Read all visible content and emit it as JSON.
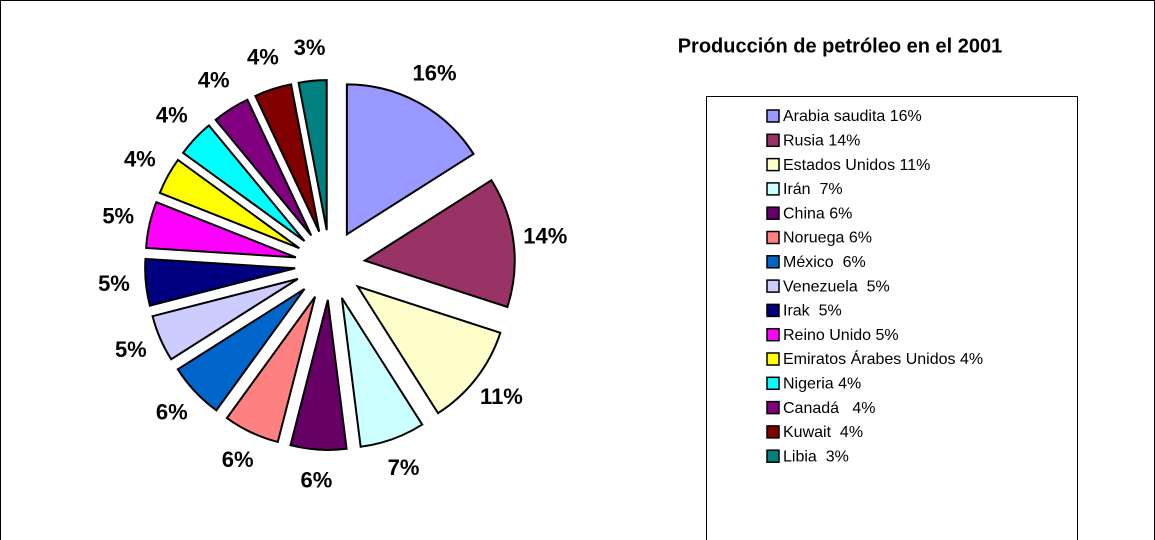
{
  "chart_data": {
    "type": "pie",
    "title": "Producción de petróleo en el 2001",
    "categories": [
      "Arabia saudita 16%",
      "Rusia 14%",
      "Estados Unidos 11%",
      "Irán  7%",
      "China 6%",
      "Noruega 6%",
      "México  6%",
      "Venezuela  5%",
      "Irak  5%",
      "Reino Unido 5%",
      "Emiratos Árabes Unidos 4%",
      "Nigeria 4%",
      "Canadá   4%",
      "Kuwait  4%",
      "Libia  3%"
    ],
    "values": [
      16,
      14,
      11,
      7,
      6,
      6,
      6,
      5,
      5,
      5,
      4,
      4,
      4,
      4,
      3
    ],
    "value_labels": [
      "16%",
      "14%",
      "11%",
      "7%",
      "6%",
      "6%",
      "6%",
      "5%",
      "5%",
      "5%",
      "4%",
      "4%",
      "4%",
      "4%",
      "3%"
    ],
    "colors": [
      "#9999FF",
      "#993366",
      "#FFFFCC",
      "#CCFFFF",
      "#660066",
      "#FF8080",
      "#0066CC",
      "#CCCCFF",
      "#000080",
      "#FF00FF",
      "#FFFF00",
      "#00FFFF",
      "#800080",
      "#800000",
      "#008080"
    ],
    "legend": "right"
  }
}
